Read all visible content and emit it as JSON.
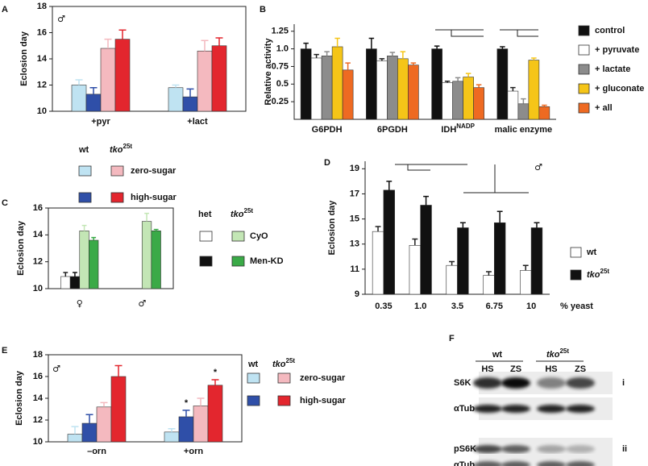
{
  "chart_data": [
    {
      "panel": "A",
      "type": "bar",
      "ylabel": "Eclosion day",
      "symbol": "♂",
      "frame": "box",
      "ylim": [
        10,
        18
      ],
      "yticks": [
        10,
        12,
        14,
        16,
        18
      ],
      "categories": [
        "+pyr",
        "+lact"
      ],
      "series": [
        {
          "color": "#bfe3f2",
          "values": [
            12.0,
            11.8
          ],
          "errors": [
            0.4,
            0.2
          ]
        },
        {
          "color": "#2f4fa8",
          "values": [
            11.3,
            11.1
          ],
          "errors": [
            0.5,
            0.6
          ]
        },
        {
          "color": "#f4b9bf",
          "values": [
            14.8,
            14.6
          ],
          "errors": [
            0.7,
            0.8
          ]
        },
        {
          "color": "#e3262e",
          "values": [
            15.5,
            15.0
          ],
          "errors": [
            0.7,
            0.6
          ]
        }
      ],
      "legend": {
        "columns": [
          "wt",
          {
            "text": "tko",
            "sup": "25t",
            "italic": true
          }
        ],
        "rows": [
          "zero-sugar",
          "high-sugar"
        ]
      }
    },
    {
      "panel": "B",
      "type": "bar",
      "ylabel": "Relative activity",
      "frame": "axes",
      "ylim": [
        0,
        1.35
      ],
      "yticks": [
        0.25,
        0.5,
        0.75,
        {
          "value": 1,
          "label": "1.0"
        },
        1.25
      ],
      "categories": [
        "G6PDH",
        "6PGDH",
        {
          "text": "IDH",
          "sup": "NADP"
        },
        "malic enzyme"
      ],
      "series": [
        {
          "name": "control",
          "color": "#111111",
          "values": [
            1.0,
            1.0,
            1.0,
            1.0
          ],
          "errors": [
            0.08,
            0.15,
            0.04,
            0.03
          ]
        },
        {
          "name": "+ pyruvate",
          "color": "#ffffff",
          "values": [
            0.87,
            0.83,
            0.52,
            0.4
          ],
          "errors": [
            0.05,
            0.03,
            0.02,
            0.05
          ]
        },
        {
          "name": "+ lactate",
          "color": "#8c8c8c",
          "values": [
            0.9,
            0.9,
            0.54,
            0.22
          ],
          "errors": [
            0.06,
            0.05,
            0.05,
            0.07
          ]
        },
        {
          "name": "+ gluconate",
          "color": "#f5c518",
          "values": [
            1.03,
            0.86,
            0.6,
            0.84
          ],
          "errors": [
            0.12,
            0.1,
            0.05,
            0.03
          ]
        },
        {
          "name": "+ all",
          "color": "#ee6a22",
          "values": [
            0.7,
            0.77,
            0.45,
            0.18
          ],
          "errors": [
            0.1,
            0.03,
            0.04,
            0.02
          ]
        }
      ]
    },
    {
      "panel": "C",
      "type": "bar",
      "ylabel": "Eclosion day",
      "frame": "box",
      "ylim": [
        10,
        16
      ],
      "yticks": [
        10,
        12,
        14,
        16
      ],
      "categories": [
        "♀",
        "♂"
      ],
      "series": [
        {
          "color": "#ffffff",
          "values": [
            10.9,
            null
          ],
          "errors": [
            0.3,
            null
          ]
        },
        {
          "color": "#111111",
          "values": [
            10.9,
            null
          ],
          "errors": [
            0.3,
            null
          ]
        },
        {
          "color": "#c3e6b5",
          "values": [
            14.3,
            15.0
          ],
          "errors": [
            0.4,
            0.6
          ]
        },
        {
          "color": "#3aaa47",
          "values": [
            13.6,
            14.3
          ],
          "errors": [
            0.2,
            0.1
          ]
        }
      ],
      "legend": {
        "columns": [
          "het",
          {
            "text": "tko",
            "sup": "25t",
            "italic": true
          }
        ],
        "rows": [
          "CyO",
          "Men-KD"
        ]
      }
    },
    {
      "panel": "D",
      "type": "bar",
      "ylabel": "Eclosion day",
      "xlabel": "% yeast",
      "symbol": "♂",
      "frame": "axes",
      "ylim": [
        9,
        19.6
      ],
      "yticks": [
        9,
        11,
        13,
        15,
        17,
        19
      ],
      "categories": [
        "0.35",
        "1.0",
        "3.5",
        "6.75",
        "10"
      ],
      "series": [
        {
          "name": "wt",
          "color": "#ffffff",
          "values": [
            14.0,
            12.9,
            11.3,
            10.5,
            10.9
          ],
          "errors": [
            0.4,
            0.5,
            0.3,
            0.3,
            0.4
          ]
        },
        {
          "name": {
            "text": "tko",
            "sup": "25t",
            "italic": true
          },
          "color": "#111111",
          "values": [
            17.3,
            16.1,
            14.3,
            14.7,
            14.3
          ],
          "errors": [
            0.7,
            0.7,
            0.4,
            0.9,
            0.4
          ]
        }
      ]
    },
    {
      "panel": "E",
      "type": "bar",
      "ylabel": "Eclosion day",
      "symbol": "♂",
      "frame": "box",
      "ylim": [
        10,
        18
      ],
      "yticks": [
        10,
        12,
        14,
        16,
        18
      ],
      "categories": [
        "–orn",
        "+orn"
      ],
      "series": [
        {
          "color": "#bfe3f2",
          "values": [
            10.7,
            10.9
          ],
          "errors": [
            0.7,
            0.3
          ]
        },
        {
          "color": "#2f4fa8",
          "values": [
            11.7,
            12.3
          ],
          "errors": [
            0.8,
            0.6
          ]
        },
        {
          "color": "#f4b9bf",
          "values": [
            13.2,
            13.3
          ],
          "errors": [
            0.4,
            0.7
          ]
        },
        {
          "color": "#e3262e",
          "values": [
            16.0,
            15.2
          ],
          "errors": [
            1.0,
            0.5
          ]
        }
      ],
      "annotations": [
        {
          "text": "*",
          "series": 1,
          "category": 1
        },
        {
          "text": "*",
          "series": 3,
          "category": 1
        }
      ],
      "legend": {
        "columns": [
          "wt",
          {
            "text": "tko",
            "sup": "25t",
            "italic": true
          }
        ],
        "rows": [
          "zero-sugar",
          "high-sugar"
        ]
      }
    }
  ],
  "blot": {
    "panel": "F",
    "groups": [
      "wt",
      {
        "text": "tko",
        "sup": "25t",
        "italic": true
      }
    ],
    "lanes": [
      "HS",
      "ZS",
      "HS",
      "ZS"
    ],
    "rows": [
      {
        "label": "S6K",
        "tag": "i"
      },
      {
        "label": "αTub"
      },
      {
        "label": "pS6K",
        "tag": "ii"
      },
      {
        "label": "αTub"
      }
    ]
  }
}
